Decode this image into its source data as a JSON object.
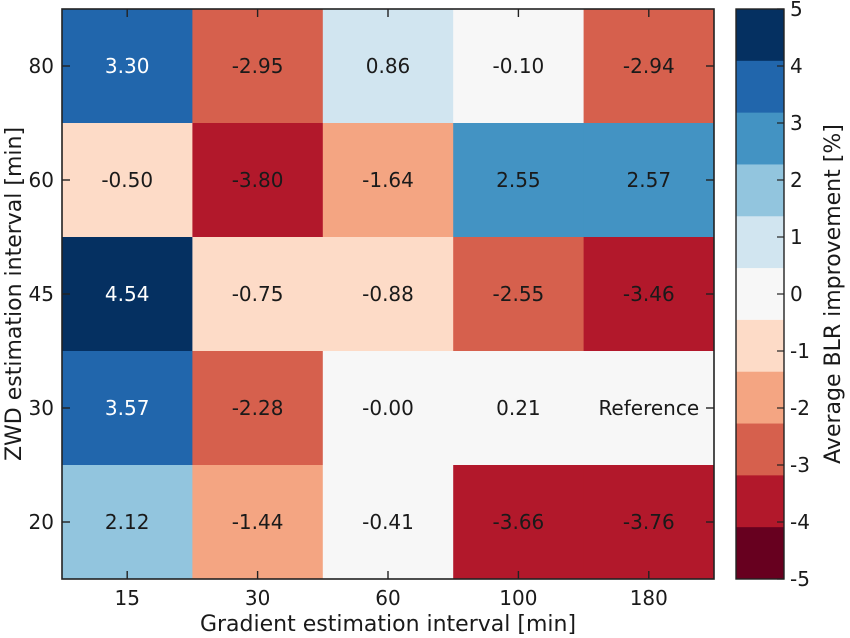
{
  "chart_data": {
    "type": "heatmap",
    "x_categories": [
      "15",
      "30",
      "60",
      "100",
      "180"
    ],
    "y_categories": [
      "80",
      "60",
      "45",
      "30",
      "20"
    ],
    "xlabel": "Gradient estimation interval [min]",
    "ylabel": "ZWD estimation interval [min]",
    "values": [
      [
        3.3,
        -2.95,
        0.86,
        -0.1,
        -2.94
      ],
      [
        -0.5,
        -3.8,
        -1.64,
        2.55,
        2.57
      ],
      [
        4.54,
        -0.75,
        -0.88,
        -2.55,
        -3.46
      ],
      [
        3.57,
        -2.28,
        -0.0,
        0.21,
        null
      ],
      [
        2.12,
        -1.44,
        -0.41,
        -3.66,
        -3.76
      ]
    ],
    "cell_labels": [
      [
        "3.30",
        "-2.95",
        "0.86",
        "-0.10",
        "-2.94"
      ],
      [
        "-0.50",
        "-3.80",
        "-1.64",
        "2.55",
        "2.57"
      ],
      [
        "4.54",
        "-0.75",
        "-0.88",
        "-2.55",
        "-3.46"
      ],
      [
        "3.57",
        "-2.28",
        "-0.00",
        "0.21",
        "Reference"
      ],
      [
        "2.12",
        "-1.44",
        "-0.41",
        "-3.66",
        "-3.76"
      ]
    ],
    "colorbar": {
      "label": "Average BLR improvement [%]",
      "ticks": [
        "5",
        "4",
        "3",
        "2",
        "1",
        "0",
        "-1",
        "-2",
        "-3",
        "-4",
        "-5"
      ],
      "range": [
        -5,
        5
      ],
      "colors_top_to_bottom": [
        "#053061",
        "#2166ac",
        "#4393c3",
        "#92c5de",
        "#d1e5f0",
        "#f7f7f7",
        "#fddbc7",
        "#f4a582",
        "#d6604d",
        "#b2182b",
        "#67001f"
      ]
    }
  }
}
